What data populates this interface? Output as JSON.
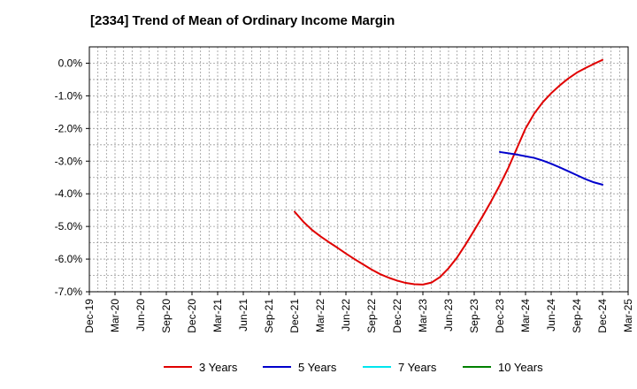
{
  "chart_data": {
    "type": "line",
    "title": "[2334]  Trend of Mean of Ordinary Income Margin",
    "xlabel": "",
    "ylabel": "",
    "x_ticks": [
      "Dec-19",
      "Mar-20",
      "Jun-20",
      "Sep-20",
      "Dec-20",
      "Mar-21",
      "Jun-21",
      "Sep-21",
      "Dec-21",
      "Mar-22",
      "Jun-22",
      "Sep-22",
      "Dec-22",
      "Mar-23",
      "Jun-23",
      "Sep-23",
      "Dec-23",
      "Mar-24",
      "Jun-24",
      "Sep-24",
      "Dec-24",
      "Mar-25"
    ],
    "y_ticks": [
      "0.0%",
      "-1.0%",
      "-2.0%",
      "-3.0%",
      "-4.0%",
      "-5.0%",
      "-6.0%",
      "-7.0%"
    ],
    "ylim": [
      -7.0,
      0.5
    ],
    "grid": true,
    "legend_position": "bottom",
    "series": [
      {
        "name": "3 Years",
        "color": "#e00000",
        "x": [
          "Dec-21",
          "Jan-22",
          "Feb-22",
          "Mar-22",
          "Apr-22",
          "May-22",
          "Jun-22",
          "Jul-22",
          "Aug-22",
          "Sep-22",
          "Oct-22",
          "Nov-22",
          "Dec-22",
          "Jan-23",
          "Feb-23",
          "Mar-23",
          "Apr-23",
          "May-23",
          "Jun-23",
          "Jul-23",
          "Aug-23",
          "Sep-23",
          "Oct-23",
          "Nov-23",
          "Dec-23",
          "Jan-24",
          "Feb-24",
          "Mar-24",
          "Apr-24",
          "May-24",
          "Jun-24",
          "Jul-24",
          "Aug-24",
          "Sep-24",
          "Oct-24",
          "Nov-24",
          "Dec-24"
        ],
        "values": [
          -4.55,
          -4.85,
          -5.1,
          -5.3,
          -5.48,
          -5.65,
          -5.83,
          -6.0,
          -6.16,
          -6.32,
          -6.46,
          -6.57,
          -6.66,
          -6.73,
          -6.77,
          -6.78,
          -6.72,
          -6.55,
          -6.28,
          -5.95,
          -5.55,
          -5.12,
          -4.68,
          -4.22,
          -3.73,
          -3.2,
          -2.6,
          -2.0,
          -1.55,
          -1.2,
          -0.92,
          -0.68,
          -0.47,
          -0.29,
          -0.15,
          -0.02,
          0.1
        ]
      },
      {
        "name": "5 Years",
        "color": "#0000cc",
        "x": [
          "Dec-23",
          "Jan-24",
          "Feb-24",
          "Mar-24",
          "Apr-24",
          "May-24",
          "Jun-24",
          "Jul-24",
          "Aug-24",
          "Sep-24",
          "Oct-24",
          "Nov-24",
          "Dec-24"
        ],
        "values": [
          -2.72,
          -2.76,
          -2.8,
          -2.85,
          -2.9,
          -2.98,
          -3.08,
          -3.19,
          -3.31,
          -3.43,
          -3.55,
          -3.65,
          -3.72
        ]
      },
      {
        "name": "7 Years",
        "color": "#00e5ee",
        "x": [],
        "values": []
      },
      {
        "name": "10 Years",
        "color": "#008000",
        "x": [],
        "values": []
      }
    ]
  }
}
